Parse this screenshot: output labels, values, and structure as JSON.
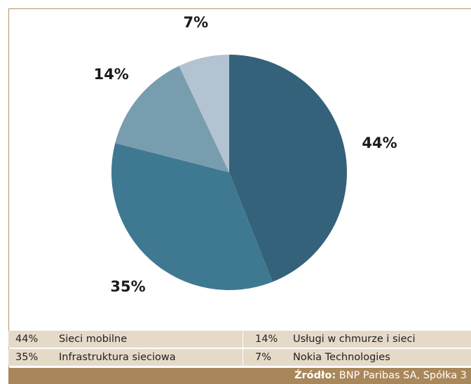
{
  "chart_data": {
    "type": "pie",
    "slices": [
      {
        "label": "Sieci mobilne",
        "value": 44,
        "display": "44%",
        "color": "#34627a"
      },
      {
        "label": "Infrastruktura sieciowa",
        "value": 35,
        "display": "35%",
        "color": "#3f7891"
      },
      {
        "label": "Usługi w chmurze i sieci",
        "value": 14,
        "display": "14%",
        "color": "#789daf"
      },
      {
        "label": "Nokia Technologies",
        "value": 7,
        "display": "7%",
        "color": "#b3c3d2"
      }
    ],
    "start_angle_deg": 0,
    "direction": "clockwise",
    "legend_placement": "bottom"
  },
  "legend": {
    "rows": [
      [
        {
          "pct": "44%",
          "name": "Sieci mobilne"
        },
        {
          "pct": "14%",
          "name": "Usługi w chmurze i sieci"
        }
      ],
      [
        {
          "pct": "35%",
          "name": "Infrastruktura sieciowa"
        },
        {
          "pct": "7%",
          "name": "Nokia Technologies"
        }
      ]
    ]
  },
  "source": {
    "label": "Źródło:",
    "text": "BNP Paribas SA, Spółka 3"
  },
  "colors": {
    "frame": "#b8956a",
    "legend_bg": "#e5d9c8",
    "source_bg": "#a8875a"
  }
}
